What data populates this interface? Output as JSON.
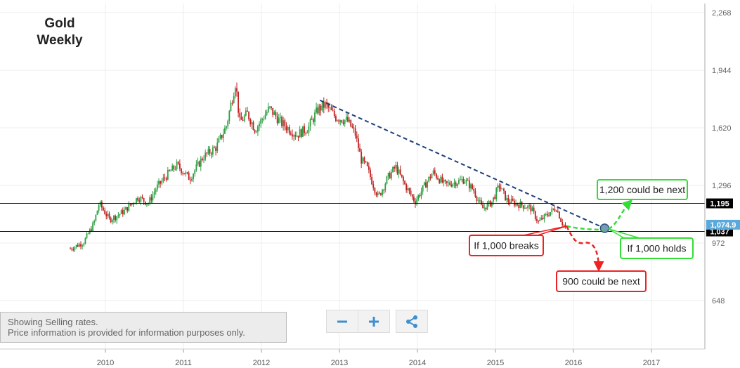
{
  "title": {
    "line1": "Gold",
    "line2": "Weekly"
  },
  "info": {
    "line1": "Showing Selling rates.",
    "line2": "Price information is provided for information purposes only."
  },
  "controls": {
    "zoom_out_icon": "minus-icon",
    "zoom_in_icon": "plus-icon",
    "share_icon": "share-icon"
  },
  "colors": {
    "bull": "#2ea043",
    "bear": "#c02020",
    "trendline": "#1c3f7a",
    "level_line": "#000000",
    "current_badge": "#5aa9dc",
    "callout_green": "#33dd33",
    "callout_red": "#ee2222"
  },
  "chart_data": {
    "type": "candlestick",
    "x_ticks": [
      "2010",
      "2011",
      "2012",
      "2013",
      "2014",
      "2015",
      "2016",
      "2017"
    ],
    "y_ticks": [
      648,
      972,
      1296,
      1620,
      1944,
      2268
    ],
    "ylim": [
      560,
      2310
    ],
    "grid": true,
    "series": [
      {
        "points": [
          [
            "2009.55",
            940
          ],
          [
            "2009.72",
            975
          ],
          [
            "2009.85",
            1080
          ],
          [
            "2009.92",
            1195
          ],
          [
            "2010.05",
            1105
          ],
          [
            "2010.13",
            1120
          ],
          [
            "2010.25",
            1155
          ],
          [
            "2010.42",
            1230
          ],
          [
            "2010.55",
            1195
          ],
          [
            "2010.65",
            1280
          ],
          [
            "2010.82",
            1370
          ],
          [
            "2010.92",
            1410
          ],
          [
            "2011.08",
            1335
          ],
          [
            "2011.25",
            1455
          ],
          [
            "2011.42",
            1510
          ],
          [
            "2011.55",
            1630
          ],
          [
            "2011.67",
            1880
          ],
          [
            "2011.72",
            1650
          ],
          [
            "2011.82",
            1700
          ],
          [
            "2011.92",
            1610
          ],
          [
            "2012.1",
            1730
          ],
          [
            "2012.25",
            1650
          ],
          [
            "2012.45",
            1580
          ],
          [
            "2012.6",
            1620
          ],
          [
            "2012.72",
            1720
          ],
          [
            "2012.82",
            1750
          ],
          [
            "2012.95",
            1680
          ],
          [
            "2013.1",
            1660
          ],
          [
            "2013.2",
            1590
          ],
          [
            "2013.28",
            1440
          ],
          [
            "2013.35",
            1400
          ],
          [
            "2013.45",
            1280
          ],
          [
            "2013.5",
            1230
          ],
          [
            "2013.62",
            1340
          ],
          [
            "2013.72",
            1400
          ],
          [
            "2013.85",
            1290
          ],
          [
            "2013.97",
            1205
          ],
          [
            "2014.1",
            1300
          ],
          [
            "2014.2",
            1370
          ],
          [
            "2014.35",
            1300
          ],
          [
            "2014.5",
            1315
          ],
          [
            "2014.6",
            1330
          ],
          [
            "2014.72",
            1270
          ],
          [
            "2014.83",
            1165
          ],
          [
            "2014.95",
            1200
          ],
          [
            "2015.05",
            1295
          ],
          [
            "2015.15",
            1210
          ],
          [
            "2015.3",
            1190
          ],
          [
            "2015.45",
            1170
          ],
          [
            "2015.55",
            1090
          ],
          [
            "2015.62",
            1115
          ],
          [
            "2015.7",
            1145
          ],
          [
            "2015.78",
            1170
          ],
          [
            "2015.85",
            1090
          ],
          [
            "2015.9",
            1060
          ]
        ]
      }
    ],
    "price_levels": [
      {
        "label": "1,195",
        "value": 1195
      },
      {
        "label": "1,037",
        "value": 1037
      }
    ],
    "current_price": {
      "label": "1,074.9",
      "value": 1074.9
    },
    "trendline": {
      "from": [
        "2012.75",
        1775
      ],
      "to": [
        "2016.4",
        1055
      ]
    },
    "annotations": [
      {
        "text": "1,200 could be next",
        "style": "green"
      },
      {
        "text": "If 1,000 holds",
        "style": "green"
      },
      {
        "text": "If 1,000 breaks",
        "style": "red"
      },
      {
        "text": "900 could be next",
        "style": "red"
      }
    ]
  }
}
